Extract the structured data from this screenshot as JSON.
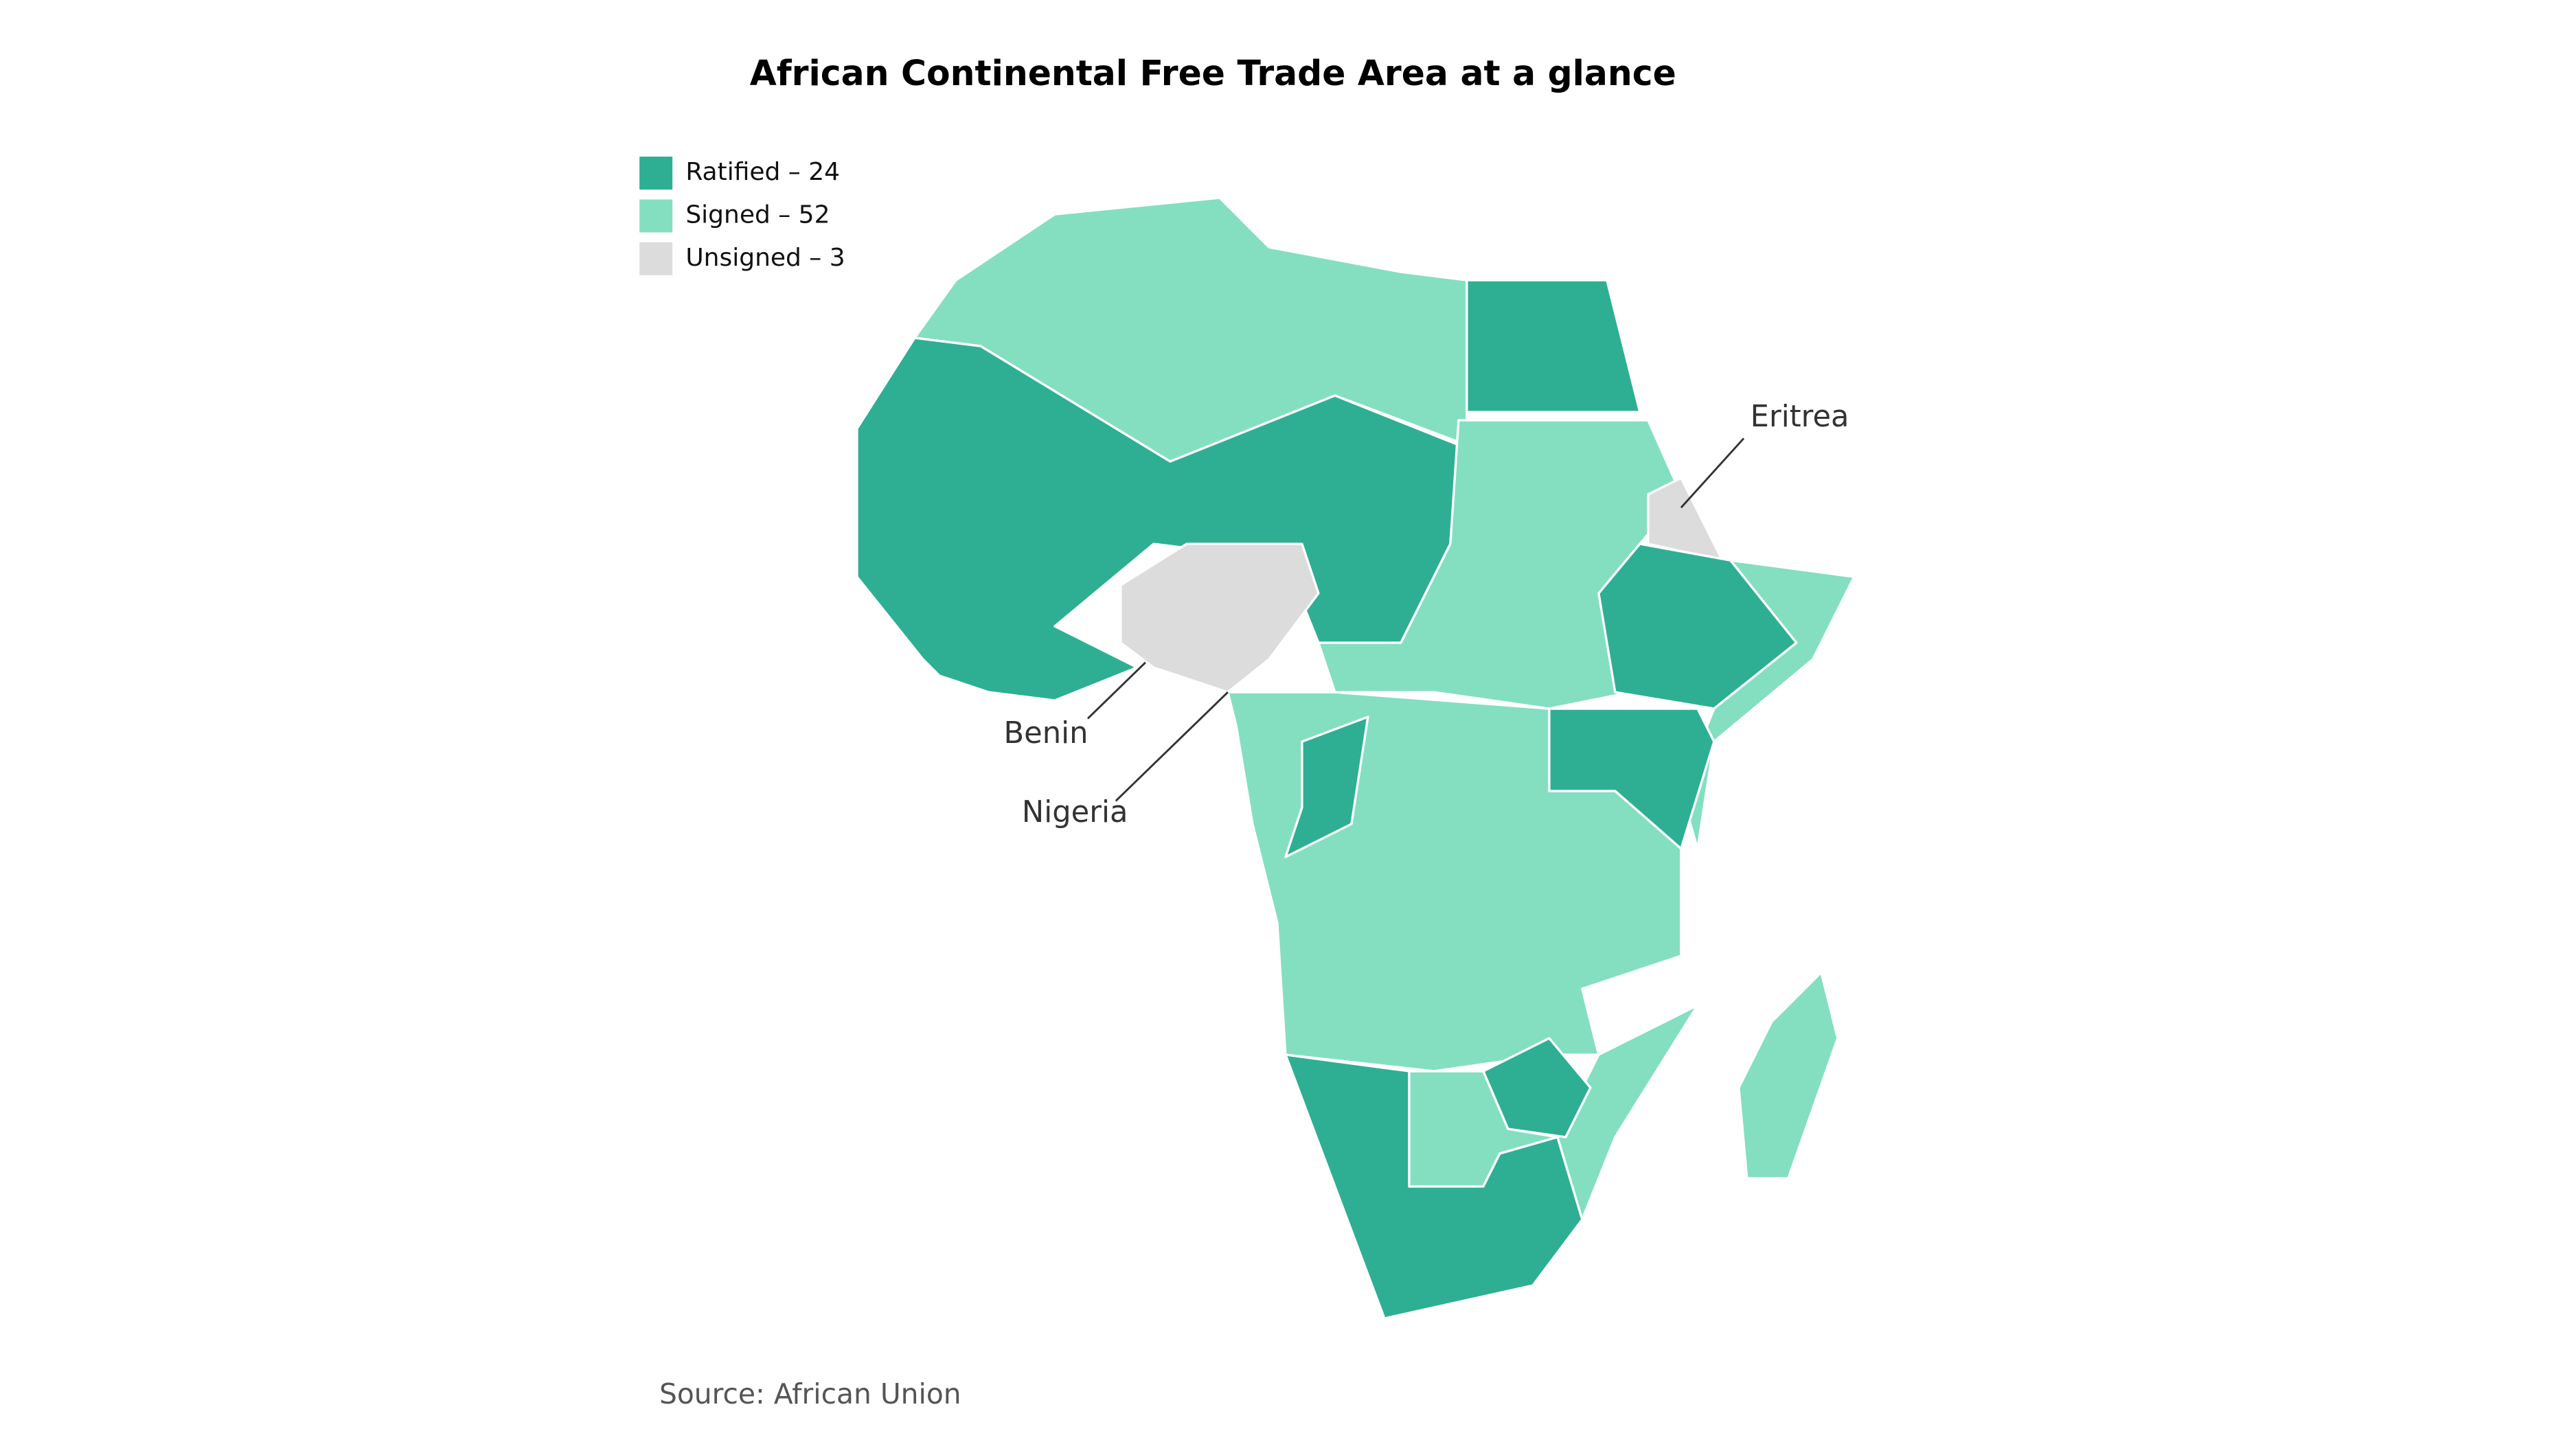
{
  "header": {
    "title": "African Continental Free Trade Area at a glance"
  },
  "legend": {
    "items": [
      {
        "label": "Ratified – 24",
        "color": "#2eaf93"
      },
      {
        "label": "Signed – 52",
        "color": "#84dfc1"
      },
      {
        "label": "Unsigned – 3",
        "color": "#dcdcdc"
      }
    ]
  },
  "callouts": [
    "Eritrea",
    "Benin",
    "Nigeria"
  ],
  "footer": {
    "source": "Source: African Union"
  }
}
